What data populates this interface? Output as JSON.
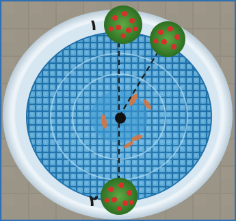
{
  "labels": {
    "point_1": "۱",
    "point_2": "۲"
  },
  "colors": {
    "frame": "#2f6fb3",
    "paving": "#8f8a7e",
    "pool_rim": "#e9f1f6",
    "tile_light": "#7fc3e6",
    "tile_mid": "#3b97cf",
    "tile_dark": "#1f6fa8",
    "planter_green": "#3f8f2f",
    "flower_red": "#d8302a",
    "dashed_line": "#1a1a1a",
    "center_dot": "#111111"
  },
  "icons": {
    "planter": "flower-pot-icon",
    "center": "center-point-icon"
  }
}
